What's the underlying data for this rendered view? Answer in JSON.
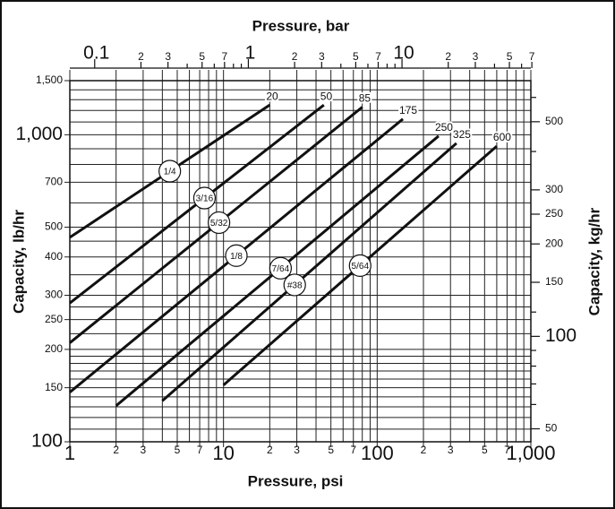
{
  "chart_data": {
    "type": "line",
    "x2_label": "Pressure, bar",
    "x_label": "Pressure, psi",
    "y_label": "Capacity, lb/hr",
    "y2_label": "Capacity, kg/hr",
    "log_scale": true,
    "grid": true,
    "xlim": [
      1,
      1000
    ],
    "ylim": [
      100,
      1500
    ],
    "xticks": [
      1,
      2,
      3,
      5,
      7,
      10,
      {
        "value": 20,
        "label": "2"
      },
      {
        "value": 30,
        "label": "3"
      },
      {
        "value": 50,
        "label": "5"
      },
      {
        "value": 70,
        "label": "7"
      },
      100,
      {
        "value": 200,
        "label": "2"
      },
      {
        "value": 300,
        "label": "3"
      },
      {
        "value": 500,
        "label": "5"
      },
      {
        "value": 700,
        "label": "7"
      },
      {
        "value": 1000,
        "label": "1,000"
      }
    ],
    "xminor": [
      4,
      6,
      8,
      9,
      40,
      60,
      80,
      90,
      400,
      600,
      800,
      900
    ],
    "yticks": [
      100,
      150,
      200,
      250,
      300,
      400,
      500,
      700,
      {
        "value": 1000,
        "label": "1,000"
      },
      {
        "value": 1500,
        "label": "1,500"
      }
    ],
    "yminor": [
      110,
      120,
      130,
      140,
      160,
      170,
      180,
      190,
      225,
      275,
      350,
      450,
      600,
      800,
      900,
      1100,
      1200,
      1300,
      1400
    ],
    "x2lim": [
      0.0689,
      68.95
    ],
    "x2ticks": [
      0.1,
      {
        "value": 0.2,
        "label": "2"
      },
      {
        "value": 0.3,
        "label": "3"
      },
      {
        "value": 0.5,
        "label": "5"
      },
      {
        "value": 0.7,
        "label": "7"
      },
      1,
      2,
      3,
      5,
      7,
      10,
      {
        "value": 20,
        "label": "2"
      },
      {
        "value": 30,
        "label": "3"
      },
      {
        "value": 50,
        "label": "5"
      },
      {
        "value": 70,
        "label": "7"
      }
    ],
    "x2minor": [
      0.4,
      0.6,
      0.8,
      0.9,
      4,
      6,
      8,
      9,
      40,
      60
    ],
    "y2lim": [
      45.36,
      680.4
    ],
    "y2ticks": [
      50,
      100,
      150,
      200,
      250,
      300,
      500
    ],
    "y2minor": [
      60,
      70,
      80,
      90,
      120,
      400,
      600
    ],
    "series": [
      {
        "name": "1/4",
        "end_label": "20",
        "color": "#111111",
        "x": [
          1,
          20
        ],
        "y": [
          463,
          1250
        ]
      },
      {
        "name": "3/16",
        "end_label": "50",
        "color": "#111111",
        "x": [
          1,
          45
        ],
        "y": [
          283,
          1250
        ]
      },
      {
        "name": "5/32",
        "end_label": "85",
        "color": "#111111",
        "x": [
          1,
          80
        ],
        "y": [
          210,
          1230
        ]
      },
      {
        "name": "1/8",
        "end_label": "175",
        "color": "#111111",
        "x": [
          1,
          147
        ],
        "y": [
          145,
          1125
        ]
      },
      {
        "name": "7/64",
        "end_label": "250",
        "color": "#111111",
        "x": [
          2,
          251
        ],
        "y": [
          131,
          990
        ]
      },
      {
        "name": "#38",
        "end_label": "325",
        "color": "#111111",
        "x": [
          4,
          328
        ],
        "y": [
          136,
          938
        ]
      },
      {
        "name": "5/64",
        "end_label": "600",
        "color": "#111111",
        "x": [
          10,
          600
        ],
        "y": [
          153,
          918
        ]
      }
    ]
  }
}
